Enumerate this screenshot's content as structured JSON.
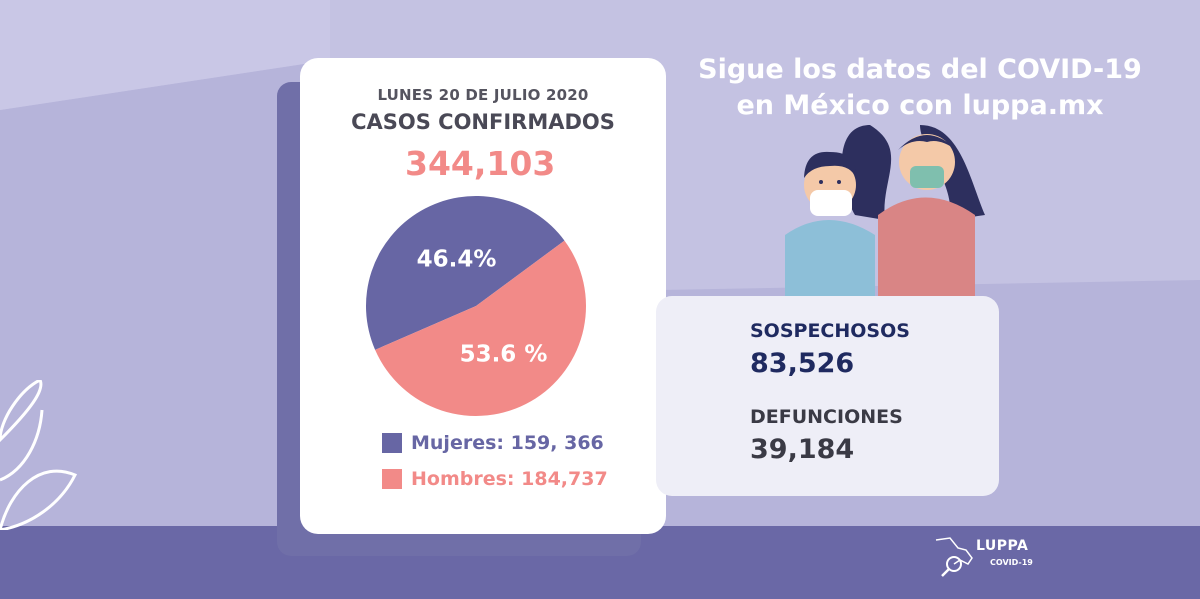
{
  "header": {
    "line1": "Sigue los datos del COVID-19",
    "line2": "en México con luppa.mx"
  },
  "card": {
    "date": "LUNES 20 DE JULIO 2020",
    "label": "CASOS CONFIRMADOS",
    "total": "344,103"
  },
  "legend": {
    "mujeres": "Mujeres: 159, 366",
    "hombres": "Hombres: 184,737"
  },
  "stats": {
    "sospechosos_label": "SOSPECHOSOS",
    "sospechosos_value": "83,526",
    "defunciones_label": "DEFUNCIONES",
    "defunciones_value": "39,184"
  },
  "logo": {
    "name": "LUPPA",
    "subtitle": "COVID-19"
  },
  "colors": {
    "mujeres": "#6766a4",
    "hombres": "#f28a88",
    "background": "#c4c2e2",
    "band": "#6a68a6"
  },
  "chart_data": {
    "type": "pie",
    "title": "CASOS CONFIRMADOS",
    "categories": [
      "Mujeres",
      "Hombres"
    ],
    "values": [
      46.4,
      53.6
    ],
    "labels": [
      "46.4%",
      "53.6 %"
    ],
    "counts": [
      "159, 366",
      "184,737"
    ]
  }
}
